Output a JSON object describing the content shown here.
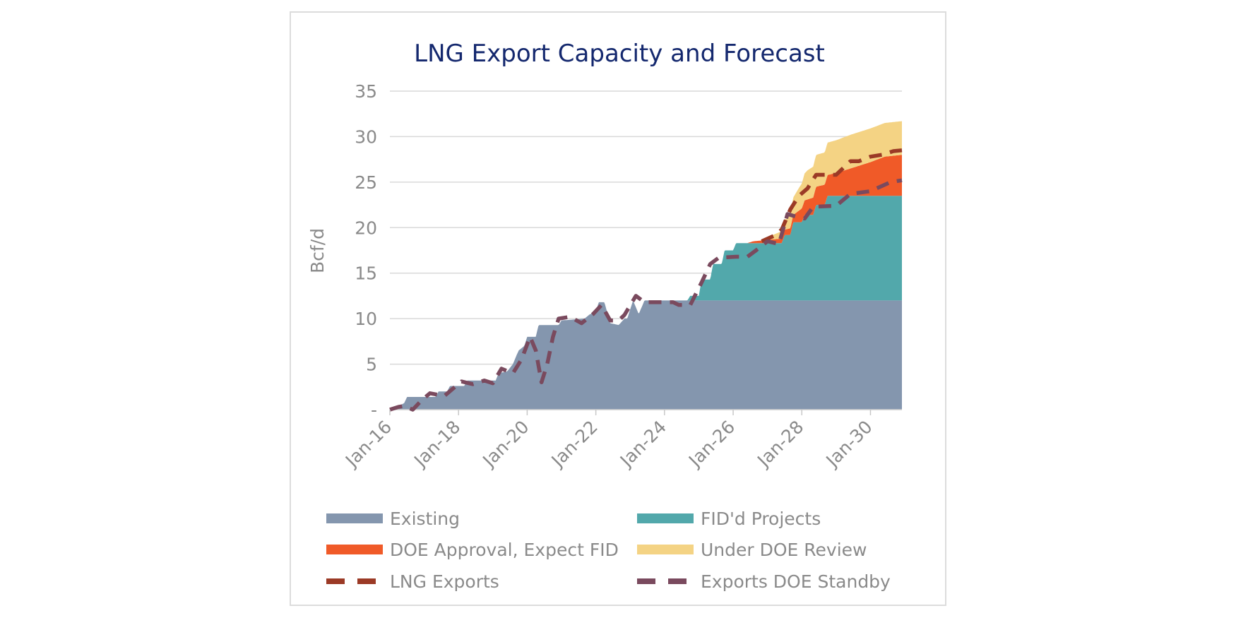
{
  "chart_data": {
    "type": "area",
    "title": "LNG Export Capacity and Forecast",
    "xlabel": "",
    "ylabel": "Bcf/d",
    "ylim": [
      0,
      35
    ],
    "y_ticks": [
      0,
      5,
      10,
      15,
      20,
      25,
      30,
      35
    ],
    "y_tick_labels": [
      "-",
      "5",
      "10",
      "15",
      "20",
      "25",
      "30",
      "35"
    ],
    "x_range": [
      "2016-01",
      "2030-12"
    ],
    "x_ticks": [
      {
        "date": "2016-01",
        "label": "Jan-16"
      },
      {
        "date": "2018-01",
        "label": "Jan-18"
      },
      {
        "date": "2020-01",
        "label": "Jan-20"
      },
      {
        "date": "2022-01",
        "label": "Jan-22"
      },
      {
        "date": "2024-01",
        "label": "Jan-24"
      },
      {
        "date": "2026-01",
        "label": "Jan-26"
      },
      {
        "date": "2028-01",
        "label": "Jan-28"
      },
      {
        "date": "2030-01",
        "label": "Jan-30"
      }
    ],
    "grid": true,
    "legend": "bottom",
    "stacked": true,
    "series": [
      {
        "name": "Existing",
        "kind": "area",
        "color": "#8496ae",
        "points": [
          [
            "2016-01",
            0
          ],
          [
            "2016-06",
            0.7
          ],
          [
            "2016-07",
            1.4
          ],
          [
            "2017-05",
            1.4
          ],
          [
            "2017-06",
            2.0
          ],
          [
            "2017-09",
            2.0
          ],
          [
            "2017-10",
            2.6
          ],
          [
            "2018-03",
            2.6
          ],
          [
            "2018-04",
            3.2
          ],
          [
            "2019-02",
            3.2
          ],
          [
            "2019-03",
            4.0
          ],
          [
            "2019-06",
            4.2
          ],
          [
            "2019-08",
            5.0
          ],
          [
            "2019-10",
            6.5
          ],
          [
            "2019-12",
            7.0
          ],
          [
            "2020-01",
            8.0
          ],
          [
            "2020-04",
            8.0
          ],
          [
            "2020-05",
            9.3
          ],
          [
            "2020-12",
            9.3
          ],
          [
            "2021-01",
            9.8
          ],
          [
            "2021-09",
            10.0
          ],
          [
            "2021-11",
            10.5
          ],
          [
            "2022-01",
            10.7
          ],
          [
            "2022-02",
            11.8
          ],
          [
            "2022-04",
            11.8
          ],
          [
            "2022-06",
            9.5
          ],
          [
            "2022-09",
            9.3
          ],
          [
            "2022-11",
            10.0
          ],
          [
            "2022-12",
            10.0
          ],
          [
            "2023-02",
            12.0
          ],
          [
            "2023-04",
            10.5
          ],
          [
            "2023-06",
            12.0
          ],
          [
            "2024-12",
            12.0
          ],
          [
            "2030-12",
            12.0
          ]
        ]
      },
      {
        "name": "FID'd Projects",
        "kind": "area",
        "color": "#52a8ab",
        "points": [
          [
            "2016-01",
            0
          ],
          [
            "2024-09",
            0
          ],
          [
            "2024-10",
            0.5
          ],
          [
            "2025-01",
            0.5
          ],
          [
            "2025-02",
            2.3
          ],
          [
            "2025-05",
            2.3
          ],
          [
            "2025-06",
            4.0
          ],
          [
            "2025-09",
            4.0
          ],
          [
            "2025-10",
            5.5
          ],
          [
            "2026-01",
            5.5
          ],
          [
            "2026-02",
            6.3
          ],
          [
            "2027-06",
            6.3
          ],
          [
            "2027-07",
            7.2
          ],
          [
            "2027-09",
            7.2
          ],
          [
            "2027-10",
            8.6
          ],
          [
            "2028-01",
            8.6
          ],
          [
            "2028-02",
            9.4
          ],
          [
            "2028-05",
            9.4
          ],
          [
            "2028-06",
            10.5
          ],
          [
            "2028-09",
            10.5
          ],
          [
            "2028-10",
            11.5
          ],
          [
            "2030-12",
            11.5
          ]
        ]
      },
      {
        "name": "DOE Approval, Expect FID",
        "kind": "area",
        "color": "#f05a28",
        "points": [
          [
            "2016-01",
            0
          ],
          [
            "2026-06",
            0
          ],
          [
            "2026-08",
            0.2
          ],
          [
            "2027-06",
            0.5
          ],
          [
            "2027-10",
            0.8
          ],
          [
            "2028-01",
            1.5
          ],
          [
            "2028-06",
            2.0
          ],
          [
            "2029-01",
            2.5
          ],
          [
            "2029-06",
            3.0
          ],
          [
            "2030-01",
            3.7
          ],
          [
            "2030-06",
            4.3
          ],
          [
            "2030-12",
            4.5
          ]
        ]
      },
      {
        "name": "Under DOE Review",
        "kind": "area",
        "color": "#f4d384",
        "points": [
          [
            "2016-01",
            0
          ],
          [
            "2026-11",
            0
          ],
          [
            "2027-01",
            0.3
          ],
          [
            "2027-06",
            0.8
          ],
          [
            "2027-09",
            1.6
          ],
          [
            "2027-12",
            2.5
          ],
          [
            "2028-03",
            3.2
          ],
          [
            "2028-06",
            3.5
          ],
          [
            "2029-01",
            3.6
          ],
          [
            "2029-06",
            3.7
          ],
          [
            "2030-01",
            3.7
          ],
          [
            "2030-12",
            3.7
          ]
        ]
      },
      {
        "name": "LNG Exports",
        "kind": "dashed-line",
        "color": "#9b3a26",
        "points": [
          [
            "2026-11",
            18.5
          ],
          [
            "2027-04",
            19.2
          ],
          [
            "2027-06",
            19.8
          ],
          [
            "2027-09",
            22.0
          ],
          [
            "2027-12",
            23.5
          ],
          [
            "2028-03",
            24.3
          ],
          [
            "2028-06",
            25.8
          ],
          [
            "2029-01",
            25.8
          ],
          [
            "2029-06",
            27.3
          ],
          [
            "2029-09",
            27.3
          ],
          [
            "2030-01",
            27.8
          ],
          [
            "2030-05",
            28.0
          ],
          [
            "2030-09",
            28.4
          ],
          [
            "2030-12",
            28.5
          ]
        ]
      },
      {
        "name": "Exports DOE Standby",
        "kind": "dashed-line",
        "color": "#7a4a5e",
        "points": [
          [
            "2016-01",
            0
          ],
          [
            "2016-04",
            0.3
          ],
          [
            "2016-06",
            0.4
          ],
          [
            "2016-09",
            0
          ],
          [
            "2016-12",
            1.0
          ],
          [
            "2017-03",
            1.8
          ],
          [
            "2017-08",
            1.5
          ],
          [
            "2017-11",
            2.3
          ],
          [
            "2018-02",
            3.1
          ],
          [
            "2018-06",
            2.8
          ],
          [
            "2018-10",
            3.2
          ],
          [
            "2019-01",
            2.9
          ],
          [
            "2019-04",
            4.5
          ],
          [
            "2019-08",
            4.0
          ],
          [
            "2019-11",
            5.5
          ],
          [
            "2020-02",
            8.0
          ],
          [
            "2020-04",
            6.5
          ],
          [
            "2020-06",
            3.0
          ],
          [
            "2020-08",
            5.0
          ],
          [
            "2020-10",
            8.0
          ],
          [
            "2020-12",
            10.0
          ],
          [
            "2021-04",
            10.2
          ],
          [
            "2021-08",
            9.5
          ],
          [
            "2021-12",
            10.5
          ],
          [
            "2022-03",
            11.5
          ],
          [
            "2022-06",
            9.8
          ],
          [
            "2022-09",
            9.8
          ],
          [
            "2022-11",
            10.4
          ],
          [
            "2023-03",
            12.5
          ],
          [
            "2023-06",
            11.8
          ],
          [
            "2024-04",
            11.8
          ],
          [
            "2024-06",
            11.5
          ],
          [
            "2024-10",
            11.5
          ],
          [
            "2025-02",
            14.0
          ],
          [
            "2025-05",
            16.0
          ],
          [
            "2025-08",
            16.7
          ],
          [
            "2026-02",
            16.8
          ],
          [
            "2026-06",
            16.8
          ],
          [
            "2026-09",
            17.5
          ],
          [
            "2027-01",
            18.5
          ],
          [
            "2027-05",
            18.2
          ],
          [
            "2027-08",
            21.5
          ],
          [
            "2027-11",
            21.2
          ],
          [
            "2028-02",
            21.0
          ],
          [
            "2028-05",
            22.3
          ],
          [
            "2029-01",
            22.4
          ],
          [
            "2029-06",
            23.7
          ],
          [
            "2030-01",
            24.0
          ],
          [
            "2030-08",
            25.0
          ],
          [
            "2030-12",
            25.2
          ]
        ]
      }
    ]
  }
}
